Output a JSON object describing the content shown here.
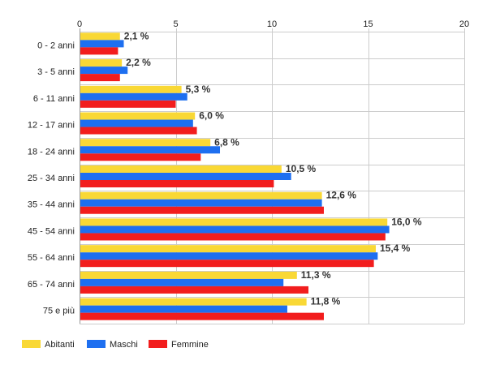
{
  "chart_data": {
    "type": "bar",
    "orientation": "horizontal",
    "categories": [
      "0 - 2 anni",
      "3 - 5 anni",
      "6 - 11 anni",
      "12 - 17 anni",
      "18 - 24 anni",
      "25 - 34 anni",
      "35 - 44 anni",
      "45 - 54 anni",
      "55 - 64 anni",
      "65 - 74 anni",
      "75 e più"
    ],
    "series": [
      {
        "name": "Abitanti",
        "color": "#f9d835",
        "values": [
          2.1,
          2.2,
          5.3,
          6.0,
          6.8,
          10.5,
          12.6,
          16.0,
          15.4,
          11.3,
          11.8
        ]
      },
      {
        "name": "Maschi",
        "color": "#1e6ff0",
        "values": [
          2.3,
          2.5,
          5.6,
          5.9,
          7.3,
          11.0,
          12.6,
          16.1,
          15.5,
          10.6,
          10.8
        ]
      },
      {
        "name": "Femmine",
        "color": "#f21d1d",
        "values": [
          2.0,
          2.1,
          5.0,
          6.1,
          6.3,
          10.1,
          12.7,
          15.9,
          15.3,
          11.9,
          12.7
        ]
      }
    ],
    "data_labels": [
      "2,1 %",
      "2,2 %",
      "5,3 %",
      "6,0 %",
      "6,8 %",
      "10,5 %",
      "12,6 %",
      "16,0 %",
      "15,4 %",
      "11,3 %",
      "11,8 %"
    ],
    "xlim": [
      0,
      20
    ],
    "x_ticks": [
      0,
      5,
      10,
      15,
      20
    ],
    "x_tick_labels": [
      "0",
      "5",
      "10",
      "15",
      "20"
    ],
    "grid": true,
    "legend_position": "bottom-left"
  }
}
